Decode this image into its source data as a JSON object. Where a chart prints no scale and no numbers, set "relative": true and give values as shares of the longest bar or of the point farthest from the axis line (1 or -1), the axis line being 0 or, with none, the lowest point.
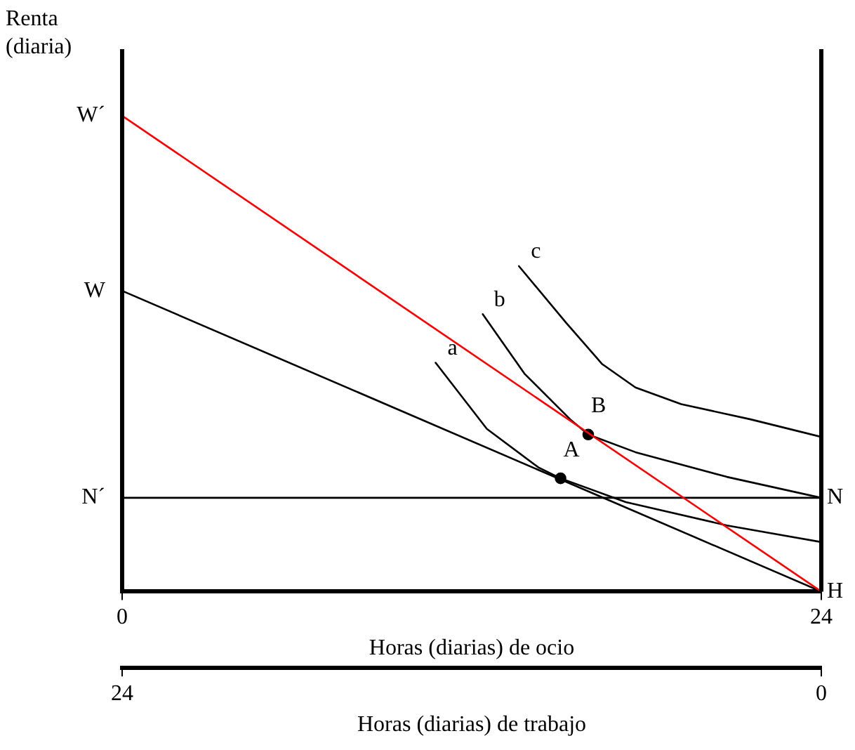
{
  "chart_data": {
    "type": "line",
    "relative": true,
    "ylabel": "Renta (diaria)",
    "xlabel": "Horas (diarias) de ocio",
    "x2label": "Horas (diarias) de trabajo",
    "xlim": [
      0,
      24
    ],
    "xticks": [
      0,
      24
    ],
    "x2lim": [
      24,
      0
    ],
    "x2ticks": [
      24,
      0
    ],
    "legend": false,
    "marker": "none",
    "line_style": "solid",
    "series": [
      {
        "color": "#ff0000",
        "x": [
          0,
          24
        ],
        "values": [
          1,
          0
        ]
      },
      {
        "color": "#000000",
        "x": [
          0,
          24
        ],
        "values": [
          0.632,
          0
        ]
      },
      {
        "color": "#000000",
        "x": [
          0,
          24
        ],
        "values": [
          0.197,
          0.197
        ]
      },
      {
        "color": "#000000",
        "x": [
          10.76,
          12.52,
          14.29,
          15.05,
          17.29,
          20.76,
          24
        ],
        "values": [
          0.481,
          0.342,
          0.261,
          0.238,
          0.188,
          0.139,
          0.104
        ]
      },
      {
        "color": "#000000",
        "x": [
          12.38,
          13.81,
          15.38,
          16.0,
          17.62,
          20.76,
          24
        ],
        "values": [
          0.583,
          0.458,
          0.362,
          0.33,
          0.293,
          0.241,
          0.197
        ]
      },
      {
        "color": "#000000",
        "x": [
          13.62,
          15.24,
          16.48,
          17.62,
          19.19,
          21.57,
          24
        ],
        "values": [
          0.684,
          0.565,
          0.478,
          0.429,
          0.394,
          0.362,
          0.325
        ]
      },
      {
        "type": "scatter",
        "color": "#000000",
        "marker": "circle",
        "x": [
          15.05,
          16.0
        ],
        "values": [
          0.238,
          0.33
        ]
      }
    ],
    "annotations": [
      {
        "text": "W´",
        "x": 0,
        "y": 1
      },
      {
        "text": "W",
        "x": 0,
        "y": 0.632
      },
      {
        "text": "N´",
        "x": 0,
        "y": 0.197
      },
      {
        "text": "N",
        "x": 24,
        "y": 0.197
      },
      {
        "text": "H",
        "x": 24,
        "y": 0
      },
      {
        "text": "a",
        "x": 10.76,
        "y": 0.481
      },
      {
        "text": "b",
        "x": 12.38,
        "y": 0.583
      },
      {
        "text": "c",
        "x": 13.62,
        "y": 0.684
      },
      {
        "text": "A",
        "x": 15.05,
        "y": 0.238
      },
      {
        "text": "B",
        "x": 16.0,
        "y": 0.33
      }
    ]
  }
}
